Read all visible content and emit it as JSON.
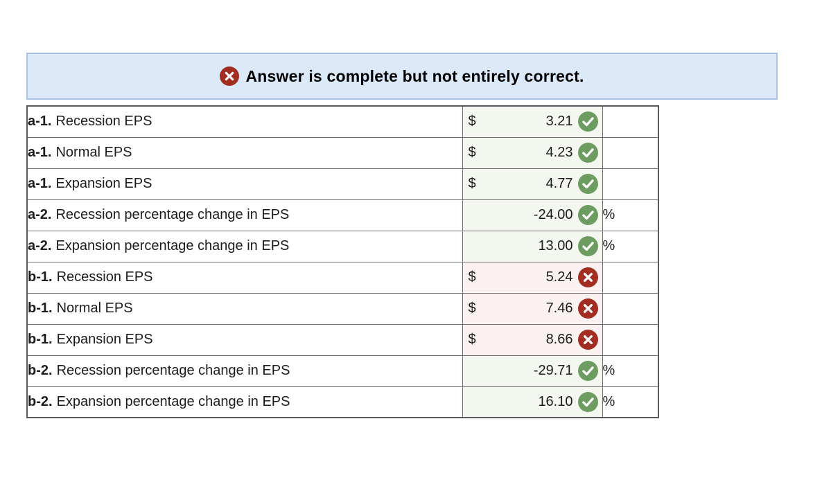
{
  "banner": {
    "text": "Answer is complete but not entirely correct.",
    "icon": "x-circle-icon",
    "bg_color": "#dbe9f8",
    "border_color": "#a9c3e1",
    "icon_color": "#a42d21"
  },
  "status_colors": {
    "correct_icon": "#6d9c60",
    "incorrect_icon": "#a42d21",
    "correct_cell_bg": "#f3f7ef",
    "incorrect_cell_bg": "#faf1f0"
  },
  "table": {
    "rows": [
      {
        "prefix": "a-1.",
        "label": "Recession EPS",
        "currency": "$",
        "value": "3.21",
        "status": "correct",
        "unit": ""
      },
      {
        "prefix": "a-1.",
        "label": "Normal EPS",
        "currency": "$",
        "value": "4.23",
        "status": "correct",
        "unit": ""
      },
      {
        "prefix": "a-1.",
        "label": "Expansion EPS",
        "currency": "$",
        "value": "4.77",
        "status": "correct",
        "unit": ""
      },
      {
        "prefix": "a-2.",
        "label": "Recession percentage change in EPS",
        "currency": "",
        "value": "-24.00",
        "status": "correct",
        "unit": "%"
      },
      {
        "prefix": "a-2.",
        "label": "Expansion percentage change in EPS",
        "currency": "",
        "value": "13.00",
        "status": "correct",
        "unit": "%"
      },
      {
        "prefix": "b-1.",
        "label": "Recession EPS",
        "currency": "$",
        "value": "5.24",
        "status": "incorrect",
        "unit": ""
      },
      {
        "prefix": "b-1.",
        "label": "Normal EPS",
        "currency": "$",
        "value": "7.46",
        "status": "incorrect",
        "unit": ""
      },
      {
        "prefix": "b-1.",
        "label": "Expansion EPS",
        "currency": "$",
        "value": "8.66",
        "status": "incorrect",
        "unit": ""
      },
      {
        "prefix": "b-2.",
        "label": "Recession percentage change in EPS",
        "currency": "",
        "value": "-29.71",
        "status": "correct",
        "unit": "%"
      },
      {
        "prefix": "b-2.",
        "label": "Expansion percentage change in EPS",
        "currency": "",
        "value": "16.10",
        "status": "correct",
        "unit": "%"
      }
    ]
  }
}
